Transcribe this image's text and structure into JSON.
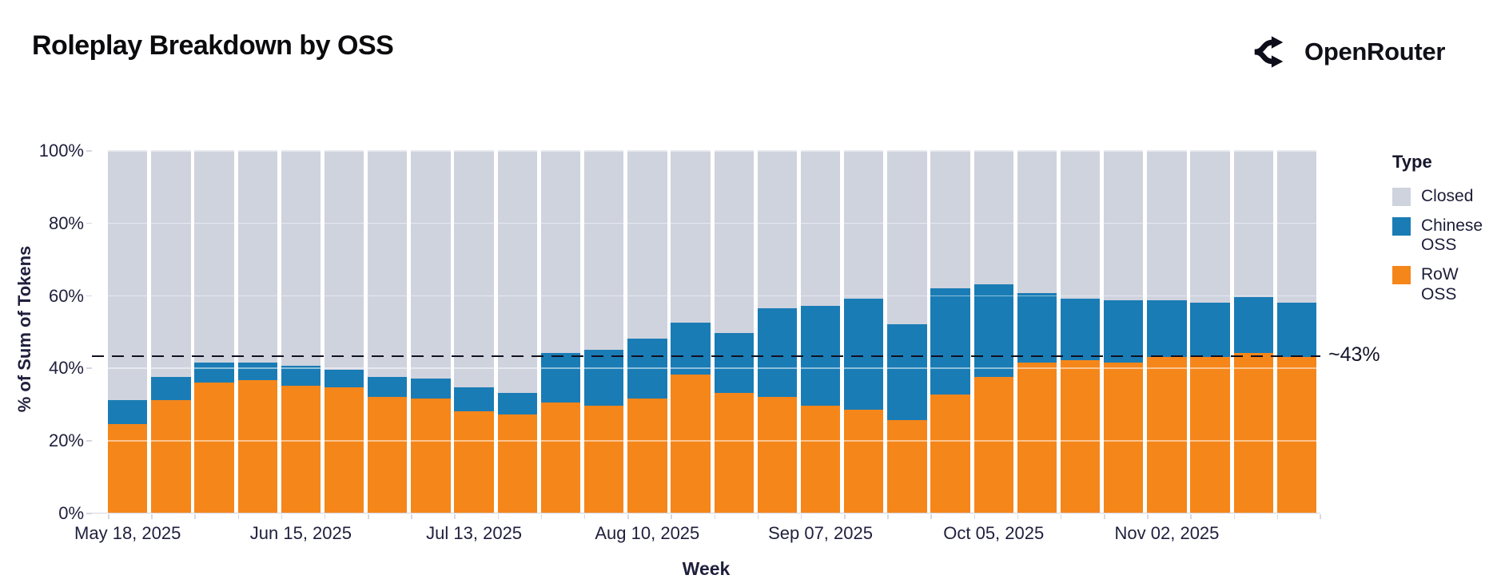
{
  "header": {
    "title": "Roleplay Breakdown by OSS",
    "brand": "OpenRouter"
  },
  "chart_data": {
    "type": "bar",
    "stacked": true,
    "title": "Roleplay Breakdown by OSS",
    "xlabel": "Week",
    "ylabel": "% of Sum of Tokens",
    "ylim": [
      0,
      100
    ],
    "grid": true,
    "legend_position": "right",
    "y_tick_values": [
      0,
      20,
      40,
      60,
      80,
      100
    ],
    "y_tick_labels": [
      "0%",
      "20%",
      "40%",
      "60%",
      "80%",
      "100%"
    ],
    "categories": [
      "May 18, 2025",
      "May 25, 2025",
      "Jun 01, 2025",
      "Jun 08, 2025",
      "Jun 15, 2025",
      "Jun 22, 2025",
      "Jun 29, 2025",
      "Jul 06, 2025",
      "Jul 13, 2025",
      "Jul 20, 2025",
      "Jul 27, 2025",
      "Aug 03, 2025",
      "Aug 10, 2025",
      "Aug 17, 2025",
      "Aug 24, 2025",
      "Aug 31, 2025",
      "Sep 07, 2025",
      "Sep 14, 2025",
      "Sep 21, 2025",
      "Sep 28, 2025",
      "Oct 05, 2025",
      "Oct 12, 2025",
      "Oct 19, 2025",
      "Oct 26, 2025",
      "Nov 02, 2025",
      "Nov 09, 2025",
      "Nov 16, 2025",
      "Nov 23, 2025"
    ],
    "x_axis_labels": [
      "May 18, 2025",
      "Jun 15, 2025",
      "Jul 13, 2025",
      "Aug 10, 2025",
      "Sep 07, 2025",
      "Oct 05, 2025",
      "Nov 02, 2025"
    ],
    "x_label_every": 4,
    "stack_order_bottom_to_top": [
      "RoW OSS",
      "Chinese OSS",
      "Closed"
    ],
    "series": [
      {
        "name": "RoW OSS",
        "color": "#f5861a",
        "values": [
          24.5,
          31,
          36,
          36.5,
          35,
          34.5,
          32,
          31.5,
          28,
          27,
          30.5,
          29.5,
          31.5,
          38,
          33,
          32,
          29.5,
          28.5,
          25.5,
          32.5,
          37.5,
          41.5,
          42,
          41.5,
          43,
          43,
          44,
          43
        ]
      },
      {
        "name": "Chinese OSS",
        "color": "#1a7cb5",
        "values": [
          6.5,
          6.5,
          5.5,
          5,
          5.5,
          5,
          5.5,
          5.5,
          6.5,
          6,
          13.5,
          15.5,
          16.5,
          14.5,
          16.5,
          24.5,
          27.5,
          30.5,
          26.5,
          29.5,
          25.5,
          19,
          17,
          17,
          15.5,
          15,
          15.5,
          15
        ]
      },
      {
        "name": "Closed",
        "color": "#cfd3de",
        "values": [
          69,
          62.5,
          58.5,
          58.5,
          59.5,
          60.5,
          62.5,
          63,
          65.5,
          67,
          56,
          55,
          52,
          47.5,
          50.5,
          43.5,
          43,
          41,
          48,
          38,
          37,
          39.5,
          41,
          41.5,
          41.5,
          42,
          40.5,
          42
        ]
      }
    ],
    "reference_line": {
      "label": "~43%",
      "value": 43.5
    },
    "legend": {
      "title": "Type",
      "items": [
        {
          "label": "Closed",
          "color": "#cfd3de"
        },
        {
          "label": "Chinese OSS",
          "color": "#1a7cb5"
        },
        {
          "label": "RoW OSS",
          "color": "#f5861a"
        }
      ]
    }
  }
}
